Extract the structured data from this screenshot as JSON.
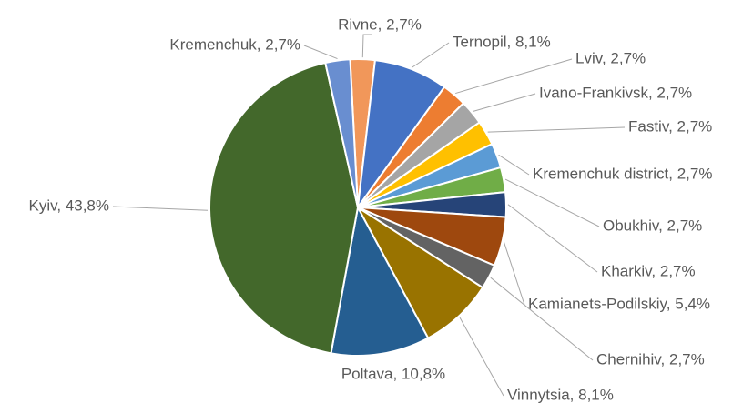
{
  "chart_data": {
    "type": "pie",
    "values": [
      2.7,
      8.1,
      2.7,
      2.7,
      2.7,
      2.7,
      2.7,
      2.7,
      5.4,
      2.7,
      8.1,
      10.8,
      43.8,
      2.7
    ],
    "value_labels": [
      "Rivne, 2,7%",
      "Ternopil, 8,1%",
      "Lviv, 2,7%",
      "Ivano-Frankivsk, 2,7%",
      "Fastiv, 2,7%",
      "Kremenchuk district, 2,7%",
      "Obukhiv, 2,7%",
      "Kharkiv, 2,7%",
      "Kamianets-Podilskiy, 5,4%",
      "Chernihiv, 2,7%",
      "Vinnytsia, 8,1%",
      "Poltava, 10,8%",
      "Kyiv, 43,8%",
      "Kremenchuk, 2,7%"
    ],
    "colors": [
      "#f1975a",
      "#4472c4",
      "#ed7d31",
      "#a5a5a5",
      "#ffc000",
      "#5b9bd5",
      "#70ad47",
      "#264478",
      "#9e480e",
      "#636363",
      "#997300",
      "#255e91",
      "#43682b",
      "#698ed0"
    ]
  }
}
